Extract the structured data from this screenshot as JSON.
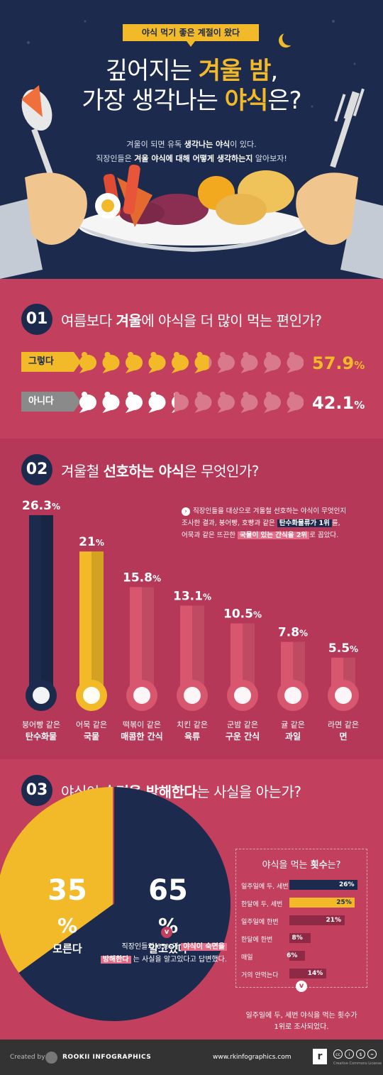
{
  "header": {
    "tag": "야식 먹기 좋은 계절이 왔다",
    "title_line1_pre": "깊어지는 ",
    "title_line1_hl": "겨울 밤",
    "title_line1_post": ",",
    "title_line2_pre": "가장 생각나는 ",
    "title_line2_hl": "야식",
    "title_line2_post": "은?",
    "sub1_pre": "겨울이 되면 유독 ",
    "sub1_hl": "생각나는 야식",
    "sub1_post": "이 있다.",
    "sub2_pre": "직장인들은 ",
    "sub2_hl": "겨울 야식에 대해 어떻게 생각하는지",
    "sub2_post": " 알아보자!"
  },
  "q1": {
    "num": "01",
    "pre": "여름보다 ",
    "bold": "겨울",
    "post": "에 야식을 더 많이 먹는 편인가?",
    "yes_label": "그렇다",
    "yes_pct": "57.9",
    "no_label": "아니다",
    "no_pct": "42.1",
    "unit": "%"
  },
  "q2": {
    "num": "02",
    "pre": "겨울철 ",
    "bold": "선호하는 야식",
    "post": "은 무엇인가?",
    "note_line1": "직장인들을 대상으로 겨울철 선호하는 야식이 무엇인지",
    "note_line2_pre": "조사한 결과, 붕어빵, 호빵과 같은 ",
    "note_line2_hl": "탄수화물류가 1위",
    "note_line2_post": "를,",
    "note_line3_pre": "어묵과 같은 뜨끈한 ",
    "note_line3_hl": "국물이 있는 간식을 2위",
    "note_line3_post": "로 꼽았다."
  },
  "q3": {
    "num": "03",
    "pre": "야식이 ",
    "bold": "숙면을 방해한다",
    "post": "는 사실을 아는가?",
    "no_pct": "35",
    "no_label": "모른다",
    "yes_pct": "65",
    "yes_label": "알고있다",
    "unit": "%",
    "note_line1_pre": "직장인들의 65%가 ",
    "note_line1_hl": "야식이 숙면을",
    "note_line2_hl": "방해한다",
    "note_line2_post": " 는 사실을 알고있다고 답변했다.",
    "freq_title_pre": "야식을 먹는 ",
    "freq_title_bold": "횟수",
    "freq_title_post": "는?",
    "freq_foot_line1": "일주일에 두, 세번 야식을 먹는 횟수가",
    "freq_foot_line2": "1위로 조사되었다."
  },
  "chart_data": [
    {
      "type": "pie",
      "title": "",
      "categories": [
        "그렇다",
        "아니다"
      ],
      "values": [
        57.9,
        42.1
      ],
      "unit": "%"
    },
    {
      "type": "bar",
      "title": "",
      "categories": [
        {
          "line1": "붕어빵 같은",
          "line2": "탄수화물",
          "icon": "fish-bread-icon"
        },
        {
          "line1": "어묵 같은",
          "line2": "국물",
          "icon": "soup-bowl-icon"
        },
        {
          "line1": "떡볶이 같은",
          "line2": "매콤한 간식",
          "icon": "chili-pepper-icon"
        },
        {
          "line1": "치킨 같은",
          "line2": "육류",
          "icon": "chicken-leg-icon"
        },
        {
          "line1": "군밤 같은",
          "line2": "구운 간식",
          "icon": "chestnut-icon"
        },
        {
          "line1": "귤 같은",
          "line2": "과일",
          "icon": "tangerine-icon"
        },
        {
          "line1": "라면 같은",
          "line2": "면",
          "icon": "noodle-bowl-icon"
        }
      ],
      "values": [
        26.3,
        21,
        15.8,
        13.1,
        10.5,
        7.8,
        5.5
      ],
      "labels": [
        "26.3",
        "21",
        "15.8",
        "13.1",
        "10.5",
        "7.8",
        "5.5"
      ],
      "unit": "%",
      "ylim": [
        0,
        26.3
      ],
      "colors": [
        "#1c2b4d",
        "#f2b928",
        "#d9566f",
        "#d9566f",
        "#d9566f",
        "#d9566f",
        "#d9566f"
      ]
    },
    {
      "type": "pie",
      "title": "",
      "categories": [
        "모른다",
        "알고있다"
      ],
      "values": [
        35,
        65
      ],
      "unit": "%",
      "colors": [
        "#f2b928",
        "#1c2b4d"
      ]
    },
    {
      "type": "bar",
      "title": "야식을 먹는 횟수는?",
      "categories": [
        "일주일에 두, 세번",
        "한달에 두, 세번",
        "일주일에 한번",
        "한달에 한번",
        "매일",
        "거의 안먹는다"
      ],
      "values": [
        26,
        25,
        21,
        8,
        6,
        14
      ],
      "labels": [
        "26",
        "25",
        "21",
        "8",
        "6",
        "14"
      ],
      "unit": "%",
      "xlim": [
        0,
        26
      ],
      "colors": [
        "#1c2b4d",
        "#f2b928",
        "#8e2a45",
        "#8e2a45",
        "#8e2a45",
        "#8e2a45"
      ]
    }
  ],
  "footer": {
    "created_by": "Created by",
    "brand": "ROOKII INFOGRAPHICS",
    "url": "www.rkinfographics.com",
    "logo_letter": "r",
    "license": "Creative Commons License"
  },
  "colors": {
    "navy": "#1c2b4d",
    "gold": "#f2b928",
    "crimson": "#c23f5d",
    "pink": "#d9566f"
  }
}
